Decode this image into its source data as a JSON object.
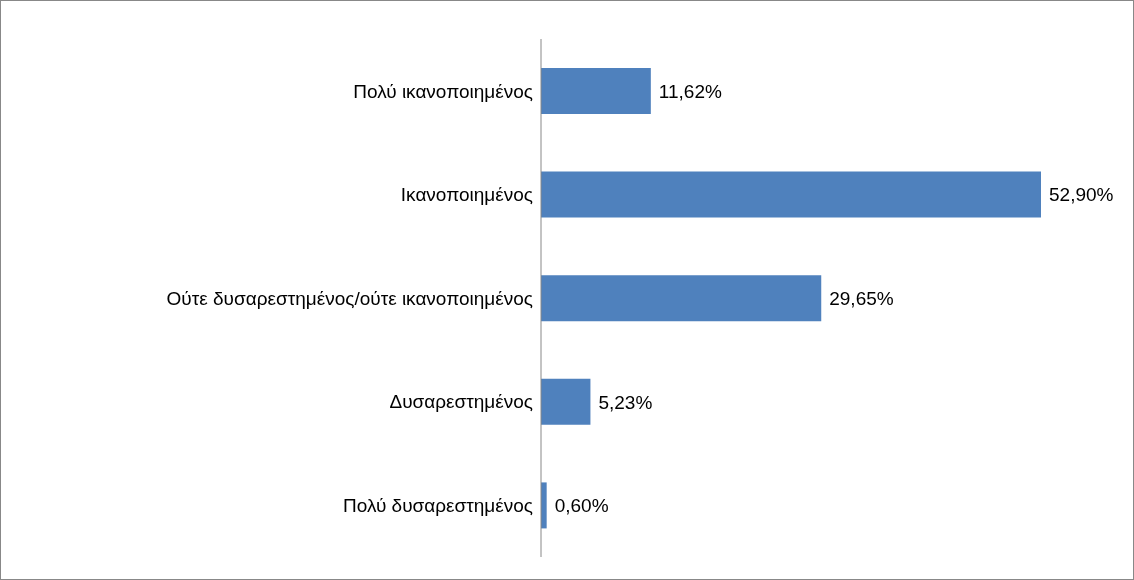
{
  "chart_data": {
    "type": "bar",
    "orientation": "horizontal",
    "categories": [
      "Πολύ ικανοποιημένος",
      "Ικανοποιημένος",
      "Ούτε δυσαρεστημένος/ούτε ικανοποιημένος",
      "Δυσαρεστημένος",
      "Πολύ δυσαρεστημένος"
    ],
    "values": [
      11.62,
      52.9,
      29.65,
      5.23,
      0.6
    ],
    "value_labels": [
      "11,62%",
      "52,90%",
      "29,65%",
      "5,23%",
      "0,60%"
    ],
    "color": "#4f81bd"
  }
}
